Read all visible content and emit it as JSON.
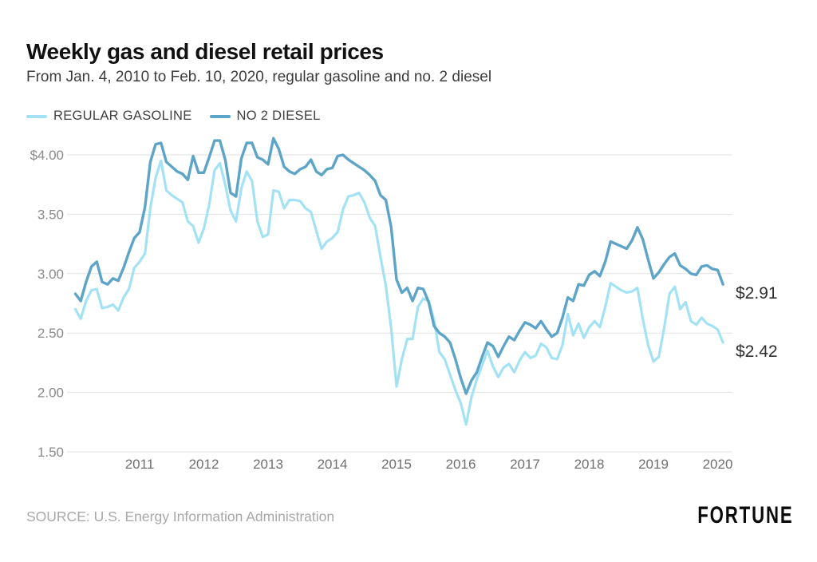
{
  "header": {
    "title": "Weekly gas and diesel retail prices",
    "subtitle": "From Jan. 4, 2010 to Feb. 10, 2020, regular gasoline and no. 2 diesel"
  },
  "legend": {
    "items": [
      {
        "label": "REGULAR GASOLINE",
        "color": "#a3e2f4"
      },
      {
        "label": "NO 2 DIESEL",
        "color": "#5ca4c8"
      }
    ]
  },
  "chart_data": {
    "type": "line",
    "title": "Weekly gas and diesel retail prices",
    "subtitle": "From Jan. 4, 2010 to Feb. 10, 2020, regular gasoline and no. 2 diesel",
    "x_range": [
      "Jan. 4, 2010",
      "Feb. 10, 2020"
    ],
    "x_interval": "monthly points approximating the weekly series",
    "ylabel": "",
    "xlabel": "",
    "ylim": [
      1.5,
      4.2
    ],
    "grid": true,
    "legend_position": "top-left",
    "yticks": [
      {
        "value": 4.0,
        "label": "$4.00"
      },
      {
        "value": 3.5,
        "label": "3.50"
      },
      {
        "value": 3.0,
        "label": "3.00"
      },
      {
        "value": 2.5,
        "label": "2.50"
      },
      {
        "value": 2.0,
        "label": "2.00"
      },
      {
        "value": 1.5,
        "label": "1.50"
      }
    ],
    "xticks": [
      {
        "year": 2011,
        "label": "2011"
      },
      {
        "year": 2012,
        "label": "2012"
      },
      {
        "year": 2013,
        "label": "2013"
      },
      {
        "year": 2014,
        "label": "2014"
      },
      {
        "year": 2015,
        "label": "2015"
      },
      {
        "year": 2016,
        "label": "2016"
      },
      {
        "year": 2017,
        "label": "2017"
      },
      {
        "year": 2018,
        "label": "2018"
      },
      {
        "year": 2019,
        "label": "2019"
      },
      {
        "year": 2020,
        "label": "2020"
      }
    ],
    "series": [
      {
        "name": "REGULAR GASOLINE",
        "color": "#a3e2f4",
        "end_label": "$2.42",
        "end_value": 2.42,
        "values": [
          2.7,
          2.62,
          2.77,
          2.86,
          2.87,
          2.71,
          2.72,
          2.74,
          2.69,
          2.8,
          2.87,
          3.05,
          3.1,
          3.17,
          3.55,
          3.81,
          3.95,
          3.7,
          3.66,
          3.63,
          3.6,
          3.44,
          3.4,
          3.26,
          3.38,
          3.58,
          3.87,
          3.93,
          3.75,
          3.53,
          3.44,
          3.72,
          3.86,
          3.78,
          3.44,
          3.31,
          3.33,
          3.7,
          3.69,
          3.55,
          3.62,
          3.62,
          3.61,
          3.55,
          3.52,
          3.36,
          3.21,
          3.27,
          3.3,
          3.35,
          3.54,
          3.65,
          3.66,
          3.68,
          3.6,
          3.47,
          3.4,
          3.14,
          2.9,
          2.54,
          2.05,
          2.28,
          2.45,
          2.45,
          2.72,
          2.79,
          2.77,
          2.61,
          2.34,
          2.28,
          2.15,
          2.02,
          1.91,
          1.73,
          1.96,
          2.11,
          2.23,
          2.35,
          2.22,
          2.13,
          2.21,
          2.24,
          2.17,
          2.27,
          2.34,
          2.29,
          2.31,
          2.41,
          2.38,
          2.29,
          2.28,
          2.4,
          2.66,
          2.48,
          2.58,
          2.46,
          2.55,
          2.6,
          2.55,
          2.72,
          2.92,
          2.89,
          2.86,
          2.84,
          2.85,
          2.88,
          2.62,
          2.4,
          2.26,
          2.3,
          2.54,
          2.83,
          2.89,
          2.7,
          2.76,
          2.6,
          2.57,
          2.63,
          2.58,
          2.56,
          2.53,
          2.42
        ]
      },
      {
        "name": "NO 2 DIESEL",
        "color": "#5ca4c8",
        "end_label": "$2.91",
        "end_value": 2.91,
        "values": [
          2.83,
          2.77,
          2.93,
          3.06,
          3.1,
          2.93,
          2.91,
          2.96,
          2.94,
          3.05,
          3.18,
          3.3,
          3.35,
          3.56,
          3.94,
          4.09,
          4.1,
          3.94,
          3.9,
          3.86,
          3.84,
          3.79,
          3.99,
          3.85,
          3.85,
          3.98,
          4.12,
          4.12,
          3.96,
          3.68,
          3.65,
          3.97,
          4.1,
          4.1,
          3.98,
          3.96,
          3.92,
          4.14,
          4.05,
          3.9,
          3.86,
          3.84,
          3.88,
          3.9,
          3.96,
          3.86,
          3.83,
          3.88,
          3.89,
          3.99,
          4.0,
          3.96,
          3.93,
          3.9,
          3.87,
          3.83,
          3.78,
          3.66,
          3.62,
          3.39,
          2.95,
          2.84,
          2.88,
          2.77,
          2.88,
          2.87,
          2.76,
          2.56,
          2.5,
          2.47,
          2.42,
          2.28,
          2.12,
          1.99,
          2.1,
          2.17,
          2.3,
          2.42,
          2.39,
          2.3,
          2.39,
          2.47,
          2.44,
          2.52,
          2.59,
          2.57,
          2.54,
          2.6,
          2.53,
          2.47,
          2.5,
          2.63,
          2.8,
          2.77,
          2.91,
          2.9,
          2.99,
          3.02,
          2.98,
          3.1,
          3.27,
          3.25,
          3.23,
          3.21,
          3.28,
          3.39,
          3.29,
          3.12,
          2.96,
          3.01,
          3.08,
          3.14,
          3.17,
          3.07,
          3.04,
          3.0,
          2.99,
          3.06,
          3.07,
          3.04,
          3.03,
          2.91
        ]
      }
    ]
  },
  "footer": {
    "source": "SOURCE: U.S. Energy Information Administration",
    "brand": "FORTUNE"
  }
}
